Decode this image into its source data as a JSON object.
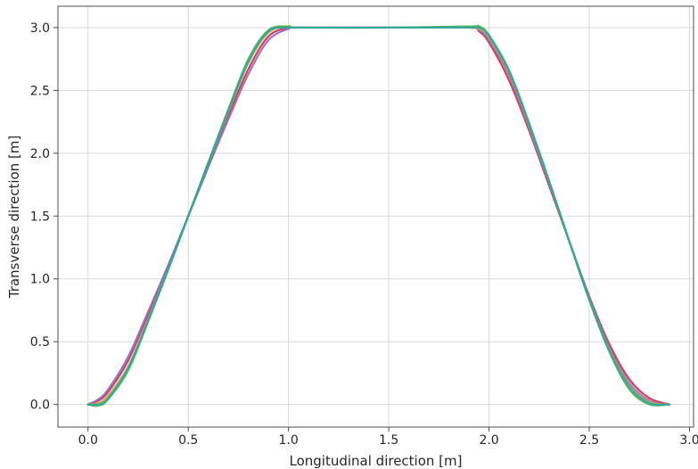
{
  "chart_data": {
    "type": "line",
    "title": "",
    "xlabel": "Longitudinal direction [m]",
    "ylabel": "Transverse direction [m]",
    "xlim": [
      -0.15,
      3.02
    ],
    "ylim": [
      -0.18,
      3.17
    ],
    "xticks": [
      0.0,
      0.5,
      1.0,
      1.5,
      2.0,
      2.5,
      3.0
    ],
    "xtick_labels": [
      "0.0",
      "0.5",
      "1.0",
      "1.5",
      "2.0",
      "2.5",
      "3.0"
    ],
    "yticks": [
      0.0,
      0.5,
      1.0,
      1.5,
      2.0,
      2.5,
      3.0
    ],
    "ytick_labels": [
      "0.0",
      "0.5",
      "1.0",
      "1.5",
      "2.0",
      "2.5",
      "3.0"
    ],
    "grid": true,
    "legend": false,
    "series": [
      {
        "color": "#d6274d",
        "x": [
          0.0,
          0.05,
          0.1,
          0.2,
          0.3,
          0.4,
          0.5,
          0.6,
          0.7,
          0.8,
          0.9,
          1.0,
          1.05,
          1.5,
          1.9,
          1.95,
          2.0,
          2.1,
          2.2,
          2.3,
          2.4,
          2.5,
          2.6,
          2.7,
          2.8,
          2.9
        ],
        "y": [
          0.0,
          0.03,
          0.1,
          0.35,
          0.72,
          1.1,
          1.5,
          1.9,
          2.3,
          2.67,
          2.93,
          3.0,
          3.0,
          3.0,
          3.0,
          2.97,
          2.88,
          2.58,
          2.18,
          1.74,
          1.3,
          0.86,
          0.48,
          0.2,
          0.05,
          0.0
        ]
      },
      {
        "color": "#8c6bc4",
        "x": [
          0.0,
          0.05,
          0.1,
          0.2,
          0.3,
          0.4,
          0.5,
          0.6,
          0.7,
          0.8,
          0.9,
          1.0,
          1.05,
          1.5,
          1.9,
          1.95,
          2.0,
          2.1,
          2.2,
          2.3,
          2.4,
          2.5,
          2.6,
          2.7,
          2.8,
          2.9
        ],
        "y": [
          0.0,
          0.04,
          0.12,
          0.38,
          0.74,
          1.11,
          1.5,
          1.89,
          2.27,
          2.63,
          2.9,
          2.99,
          3.0,
          3.0,
          3.0,
          2.98,
          2.9,
          2.62,
          2.2,
          1.76,
          1.3,
          0.85,
          0.45,
          0.17,
          0.03,
          0.0
        ]
      },
      {
        "color": "#d3a13b",
        "x": [
          0.0,
          0.05,
          0.1,
          0.2,
          0.3,
          0.4,
          0.5,
          0.6,
          0.7,
          0.8,
          0.9,
          1.0,
          1.05,
          1.5,
          1.9,
          1.95,
          2.0,
          2.1,
          2.2,
          2.3,
          2.4,
          2.5,
          2.6,
          2.7,
          2.8,
          2.9
        ],
        "y": [
          0.0,
          0.01,
          0.07,
          0.3,
          0.68,
          1.08,
          1.5,
          1.92,
          2.33,
          2.72,
          2.96,
          3.01,
          3.0,
          3.0,
          3.0,
          2.99,
          2.92,
          2.64,
          2.22,
          1.77,
          1.3,
          0.84,
          0.44,
          0.15,
          0.02,
          0.0
        ]
      },
      {
        "color": "#4caf50",
        "x": [
          0.0,
          0.05,
          0.1,
          0.2,
          0.3,
          0.4,
          0.5,
          0.6,
          0.7,
          0.8,
          0.9,
          1.0,
          1.05,
          1.5,
          1.9,
          1.95,
          2.0,
          2.1,
          2.2,
          2.3,
          2.4,
          2.5,
          2.6,
          2.7,
          2.8,
          2.9
        ],
        "y": [
          0.0,
          -0.01,
          0.04,
          0.27,
          0.66,
          1.07,
          1.5,
          1.93,
          2.35,
          2.75,
          2.98,
          3.01,
          3.0,
          3.0,
          3.01,
          3.01,
          2.94,
          2.66,
          2.24,
          1.78,
          1.3,
          0.83,
          0.42,
          0.12,
          0.0,
          0.0
        ]
      },
      {
        "color": "#2aa7a1",
        "x": [
          0.0,
          0.05,
          0.1,
          0.2,
          0.3,
          0.4,
          0.5,
          0.6,
          0.7,
          0.8,
          0.9,
          1.0,
          1.05,
          1.5,
          1.9,
          1.95,
          2.0,
          2.1,
          2.2,
          2.3,
          2.4,
          2.5,
          2.6,
          2.7,
          2.8,
          2.9
        ],
        "y": [
          0.0,
          0.0,
          0.05,
          0.29,
          0.67,
          1.08,
          1.5,
          1.92,
          2.34,
          2.73,
          2.97,
          3.0,
          3.0,
          3.0,
          3.0,
          3.0,
          2.93,
          2.65,
          2.23,
          1.77,
          1.3,
          0.84,
          0.43,
          0.14,
          0.01,
          0.0
        ]
      }
    ]
  }
}
